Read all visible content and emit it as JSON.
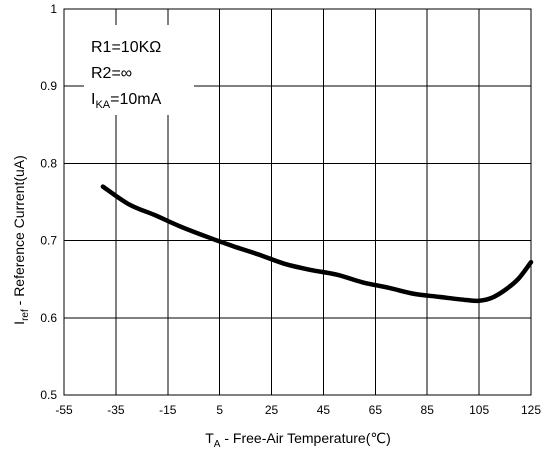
{
  "chart_data": {
    "type": "line",
    "xlabel": {
      "main": "T",
      "sub": "A",
      "rest": " - Free-Air Temperature(℃)"
    },
    "ylabel": {
      "main": "I",
      "sub": "ref",
      "rest": " - Reference  Current(uA)"
    },
    "xlim": [
      -55,
      125
    ],
    "ylim": [
      0.5,
      1.0
    ],
    "x_ticks": [
      "-55",
      "-35",
      "-15",
      "5",
      "25",
      "45",
      "65",
      "85",
      "105",
      "125"
    ],
    "y_ticks": [
      "0.5",
      "0.6",
      "0.7",
      "0.8",
      "0.9",
      "1"
    ],
    "grid": true,
    "annotations": {
      "r1": "R1=10KΩ",
      "r2": "R2=∞",
      "ika": {
        "main": "I",
        "sub": "KA",
        "rest": "=10mA"
      }
    },
    "series": [
      {
        "x": [
          -40,
          -30,
          -20,
          -10,
          0,
          10,
          20,
          30,
          40,
          50,
          60,
          70,
          80,
          90,
          100,
          105,
          110,
          115,
          120,
          125
        ],
        "y": [
          0.77,
          0.747,
          0.733,
          0.718,
          0.705,
          0.693,
          0.682,
          0.67,
          0.662,
          0.656,
          0.646,
          0.639,
          0.631,
          0.627,
          0.623,
          0.622,
          0.626,
          0.636,
          0.65,
          0.672
        ]
      }
    ]
  }
}
